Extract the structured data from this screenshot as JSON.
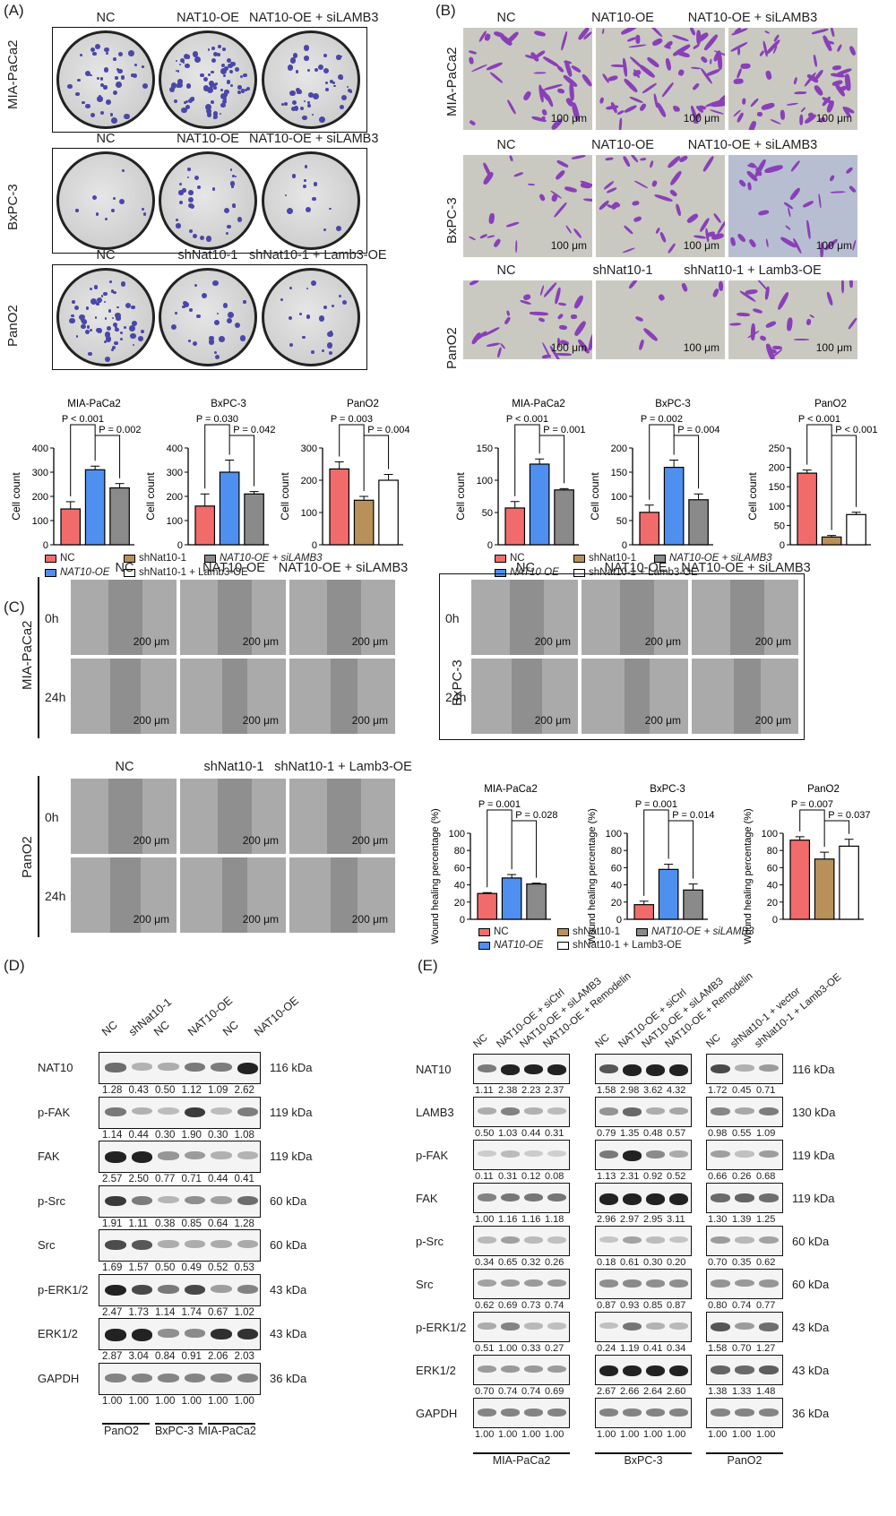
{
  "panels": {
    "a": "(A)",
    "b": "(B)",
    "c": "(C)",
    "d": "(D)",
    "e": "(E)"
  },
  "colony": {
    "rows": [
      {
        "line": "MIA-PaCa2",
        "cols": [
          "NC",
          "NAT10-OE",
          "NAT10-OE + siLAMB3"
        ]
      },
      {
        "line": "BxPC-3",
        "cols": [
          "NC",
          "NAT10-OE",
          "NAT10-OE + siLAMB3"
        ]
      },
      {
        "line": "PanO2",
        "cols": [
          "NC",
          "shNat10-1",
          "shNat10-1 + Lamb3-OE"
        ]
      }
    ]
  },
  "transwell": {
    "rows": [
      {
        "line": "MIA-PaCa2",
        "cols": [
          "NC",
          "NAT10-OE",
          "NAT10-OE + siLAMB3"
        ]
      },
      {
        "line": "BxPC-3",
        "cols": [
          "NC",
          "NAT10-OE",
          "NAT10-OE + siLAMB3"
        ]
      },
      {
        "line": "PanO2",
        "cols": [
          "NC",
          "shNat10-1",
          "shNat10-1 + Lamb3-OE"
        ]
      }
    ],
    "scale": "100 μm"
  },
  "wound": {
    "mia": {
      "line": "MIA-PaCa2",
      "cols": [
        "NC",
        "NAT10-OE",
        "NAT10-OE + siLAMB3"
      ]
    },
    "bx": {
      "line": "BxPC-3",
      "cols": [
        "NC",
        "NAT10-OE",
        "NAT10-OE + siLAMB3"
      ]
    },
    "pan": {
      "line": "PanO2",
      "cols": [
        "NC",
        "shNat10-1",
        "shNat10-1 + Lamb3-OE"
      ]
    },
    "t0": "0h",
    "t24": "24h",
    "scale": "200 μm"
  },
  "legendA": {
    "nc": "NC",
    "oe": "NAT10-OE",
    "sh": "shNat10-1",
    "oesi": "NAT10-OE + siLAMB3",
    "shl": "shNat10-1 + Lamb3-OE"
  },
  "legendB": {
    "nc": "NC",
    "oe": "NAT10 OE",
    "sh": "shNat10-1",
    "oesi": "NAT10-OE + siLAMB3",
    "shl": "shNat10-1 + Lamb3-OE"
  },
  "legendC": {
    "nc": "NC",
    "oe": "NAT10-OE",
    "sh": "shNat10-1",
    "oesi": "NAT10-OE + siLAMB3",
    "shl": "shNat10-1 + Lamb3-OE"
  },
  "colors": {
    "nc": "#f26b6b",
    "oe": "#4f8ff0",
    "sh": "#b8915a",
    "grey": "#8a8a8a",
    "white": "#ffffff"
  },
  "chart_data": [
    {
      "type": "bar",
      "title": "MIA-PaCa2",
      "ylabel": "Cell count",
      "ylim": [
        0,
        400
      ],
      "yticks": [
        0,
        100,
        200,
        300,
        400
      ],
      "categories": [
        "NC",
        "NAT10-OE",
        "NAT10-OE + siLAMB3"
      ],
      "values": [
        148,
        310,
        235
      ],
      "errors": [
        30,
        15,
        18
      ],
      "pvalues": [
        "P < 0.001",
        "P = 0.002"
      ]
    },
    {
      "type": "bar",
      "title": "BxPC-3",
      "ylabel": "Cell count",
      "ylim": [
        0,
        400
      ],
      "yticks": [
        0,
        100,
        200,
        300,
        400
      ],
      "categories": [
        "NC",
        "NAT10-OE",
        "NAT10-OE + siLAMB3"
      ],
      "values": [
        160,
        300,
        210
      ],
      "errors": [
        50,
        50,
        10
      ],
      "pvalues": [
        "P = 0.030",
        "P = 0.042"
      ]
    },
    {
      "type": "bar",
      "title": "PanO2",
      "ylabel": "Cell count",
      "ylim": [
        0,
        300
      ],
      "yticks": [
        0,
        100,
        200,
        300
      ],
      "categories": [
        "NC",
        "shNat10-1",
        "shNat10-1 + Lamb3-OE"
      ],
      "values": [
        235,
        138,
        200
      ],
      "errors": [
        22,
        12,
        18
      ],
      "pvalues": [
        "P = 0.003",
        "P = 0.004"
      ]
    },
    {
      "type": "bar",
      "title": "MIA-PaCa2",
      "ylabel": "Cell count",
      "ylim": [
        0,
        150
      ],
      "yticks": [
        0,
        50,
        100,
        150
      ],
      "categories": [
        "NC",
        "NAT10 OE",
        "NAT10-OE + siLAMB3"
      ],
      "values": [
        57,
        125,
        85
      ],
      "errors": [
        10,
        8,
        2
      ],
      "pvalues": [
        "P < 0.001",
        "P = 0.001"
      ]
    },
    {
      "type": "bar",
      "title": "BxPC-3",
      "ylabel": "Cell count",
      "ylim": [
        0,
        200
      ],
      "yticks": [
        0,
        50,
        100,
        150,
        200
      ],
      "categories": [
        "NC",
        "NAT10 OE",
        "NAT10-OE + siLAMB3"
      ],
      "values": [
        67,
        160,
        93
      ],
      "errors": [
        15,
        15,
        12
      ],
      "pvalues": [
        "P = 0.002",
        "P = 0.004"
      ]
    },
    {
      "type": "bar",
      "title": "PanO2",
      "ylabel": "Cell count",
      "ylim": [
        0,
        250
      ],
      "yticks": [
        0,
        50,
        100,
        150,
        200,
        250
      ],
      "categories": [
        "NC",
        "shNat10-1",
        "shNat10-1 + Lamb3-OE"
      ],
      "values": [
        185,
        20,
        78
      ],
      "errors": [
        8,
        4,
        6
      ],
      "pvalues": [
        "P < 0.001",
        "P < 0.001"
      ]
    },
    {
      "type": "bar",
      "title": "MIA-PaCa2",
      "ylabel": "Wound healing percentage (%)",
      "ylim": [
        0,
        100
      ],
      "yticks": [
        0,
        20,
        40,
        60,
        80,
        100
      ],
      "categories": [
        "NC",
        "NAT10-OE",
        "NAT10-OE + siLAMB3"
      ],
      "values": [
        30,
        48,
        41
      ],
      "errors": [
        1,
        4,
        1
      ],
      "pvalues": [
        "P = 0.001",
        "P = 0.028"
      ]
    },
    {
      "type": "bar",
      "title": "BxPC-3",
      "ylabel": "Wound healing percentage (%)",
      "ylim": [
        0,
        100
      ],
      "yticks": [
        0,
        20,
        40,
        60,
        80,
        100
      ],
      "categories": [
        "NC",
        "NAT10-OE",
        "NAT10-OE + siLAMB3"
      ],
      "values": [
        17,
        58,
        34
      ],
      "errors": [
        4,
        6,
        7
      ],
      "pvalues": [
        "P = 0.001",
        "P = 0.014"
      ]
    },
    {
      "type": "bar",
      "title": "PanO2",
      "ylabel": "Wound healing percentage (%)",
      "ylim": [
        0,
        100
      ],
      "yticks": [
        0,
        20,
        40,
        60,
        80,
        100
      ],
      "categories": [
        "NC",
        "shNat10-1",
        "shNat10-1 + Lamb3-OE"
      ],
      "values": [
        92,
        70,
        85
      ],
      "errors": [
        4,
        8,
        8
      ],
      "pvalues": [
        "P = 0.007",
        "P = 0.037"
      ]
    }
  ],
  "blotD": {
    "lanes": [
      "NC",
      "shNat10-1",
      "NC",
      "NAT10-OE",
      "NC",
      "NAT10-OE"
    ],
    "groups": [
      "PanO2",
      "BxPC-3",
      "MIA-PaCa2"
    ],
    "rows": [
      {
        "name": "NAT10",
        "kda": "116 kDa",
        "vals": [
          "1.28",
          "0.43",
          "0.50",
          "1.12",
          "1.09",
          "2.62"
        ]
      },
      {
        "name": "p-FAK",
        "kda": "119 kDa",
        "vals": [
          "1.14",
          "0.44",
          "0.30",
          "1.90",
          "0.30",
          "1.08"
        ]
      },
      {
        "name": "FAK",
        "kda": "119 kDa",
        "vals": [
          "2.57",
          "2.50",
          "0.77",
          "0.71",
          "0.44",
          "0.41"
        ]
      },
      {
        "name": "p-Src",
        "kda": "60 kDa",
        "vals": [
          "1.91",
          "1.11",
          "0.38",
          "0.85",
          "0.64",
          "1.28"
        ]
      },
      {
        "name": "Src",
        "kda": "60 kDa",
        "vals": [
          "1.69",
          "1.57",
          "0.50",
          "0.49",
          "0.52",
          "0.53"
        ]
      },
      {
        "name": "p-ERK1/2",
        "kda": "43 kDa",
        "vals": [
          "2.47",
          "1.73",
          "1.14",
          "1.74",
          "0.67",
          "1.02"
        ]
      },
      {
        "name": "ERK1/2",
        "kda": "43 kDa",
        "vals": [
          "2.87",
          "3.04",
          "0.84",
          "0.91",
          "2.06",
          "2.03"
        ]
      },
      {
        "name": "GAPDH",
        "kda": "36 kDa",
        "vals": [
          "1.00",
          "1.00",
          "1.00",
          "1.00",
          "1.00",
          "1.00"
        ]
      }
    ]
  },
  "blotE": {
    "lanes": [
      "NC",
      "NAT10-OE + siCtrl",
      "NAT10-OE + siLAMB3",
      "NAT10-OE + Remodelin",
      "NC",
      "NAT10-OE + siCtrl",
      "NAT10-OE + siLAMB3",
      "NAT10-OE + Remodelin",
      "NC",
      "shNat10-1 + vector",
      "shNat10-1 + Lamb3-OE"
    ],
    "groups": [
      "MIA-PaCa2",
      "BxPC-3",
      "PanO2"
    ],
    "rows": [
      {
        "name": "NAT10",
        "kda": "116 kDa",
        "vals": [
          "1.11",
          "2.38",
          "2.23",
          "2.37",
          "1.58",
          "2.98",
          "3.62",
          "4.32",
          "1.72",
          "0.45",
          "0.71"
        ]
      },
      {
        "name": "LAMB3",
        "kda": "130 kDa",
        "vals": [
          "0.50",
          "1.03",
          "0.44",
          "0.31",
          "0.79",
          "1.35",
          "0.48",
          "0.57",
          "0.98",
          "0.55",
          "1.09"
        ]
      },
      {
        "name": "p-FAK",
        "kda": "119 kDa",
        "vals": [
          "0.11",
          "0.31",
          "0.12",
          "0.08",
          "1.13",
          "2.31",
          "0.92",
          "0.52",
          "0.66",
          "0.26",
          "0.68"
        ]
      },
      {
        "name": "FAK",
        "kda": "119 kDa",
        "vals": [
          "1.00",
          "1.16",
          "1.16",
          "1.18",
          "2.96",
          "2.97",
          "2.95",
          "3.11",
          "1.30",
          "1.39",
          "1.25"
        ]
      },
      {
        "name": "p-Src",
        "kda": "60 kDa",
        "vals": [
          "0.34",
          "0.65",
          "0.32",
          "0.26",
          "0.18",
          "0.61",
          "0.30",
          "0.20",
          "0.70",
          "0.35",
          "0.62"
        ]
      },
      {
        "name": "Src",
        "kda": "60 kDa",
        "vals": [
          "0.62",
          "0.69",
          "0.73",
          "0.74",
          "0.87",
          "0.93",
          "0.85",
          "0.87",
          "0.80",
          "0.74",
          "0.77"
        ]
      },
      {
        "name": "p-ERK1/2",
        "kda": "43 kDa",
        "vals": [
          "0.51",
          "1.00",
          "0.33",
          "0.27",
          "0.24",
          "1.19",
          "0.41",
          "0.34",
          "1.58",
          "0.70",
          "1.27"
        ]
      },
      {
        "name": "ERK1/2",
        "kda": "43 kDa",
        "vals": [
          "0.70",
          "0.74",
          "0.74",
          "0.69",
          "2.67",
          "2.66",
          "2.64",
          "2.60",
          "1.38",
          "1.33",
          "1.48"
        ]
      },
      {
        "name": "GAPDH",
        "kda": "36 kDa",
        "vals": [
          "1.00",
          "1.00",
          "1.00",
          "1.00",
          "1.00",
          "1.00",
          "1.00",
          "1.00",
          "1.00",
          "1.00",
          "1.00"
        ]
      }
    ]
  }
}
